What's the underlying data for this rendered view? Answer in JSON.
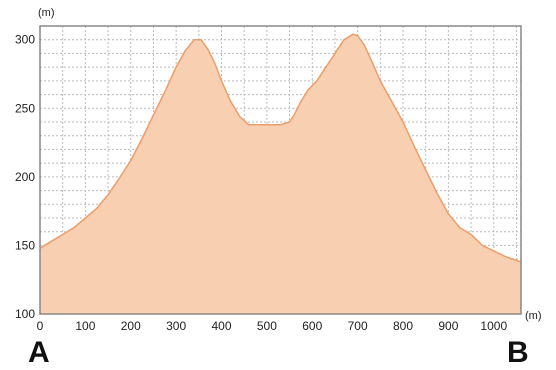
{
  "colors": {
    "fill": "#f8cfb0",
    "line": "#ec9d6c",
    "grid": "#bbbbbb",
    "frame": "#888888"
  },
  "endpoints": {
    "start": "A",
    "end": "B"
  },
  "chart_data": {
    "type": "area",
    "x_unit_label": "(m)",
    "y_unit_label": "(m)",
    "xlim": [
      0,
      1060
    ],
    "ylim": [
      100,
      310
    ],
    "x_ticks": [
      0,
      100,
      200,
      300,
      400,
      500,
      600,
      700,
      800,
      900,
      1000
    ],
    "y_ticks": [
      100,
      150,
      200,
      250,
      300
    ],
    "x_grid_step": 50,
    "y_grid_step": 10,
    "grid": true,
    "x": [
      0,
      25,
      50,
      75,
      100,
      125,
      150,
      175,
      200,
      225,
      250,
      275,
      300,
      320,
      340,
      355,
      370,
      385,
      400,
      420,
      440,
      460,
      475,
      490,
      510,
      530,
      550,
      560,
      575,
      590,
      610,
      630,
      650,
      670,
      690,
      700,
      715,
      730,
      750,
      775,
      800,
      825,
      850,
      875,
      900,
      925,
      950,
      975,
      1000,
      1025,
      1050,
      1060
    ],
    "y": [
      148,
      153,
      158,
      163,
      170,
      177,
      187,
      199,
      212,
      228,
      245,
      262,
      280,
      292,
      300,
      300,
      293,
      283,
      270,
      255,
      244,
      238,
      238,
      238,
      238,
      238,
      240,
      245,
      255,
      263,
      270,
      280,
      290,
      300,
      304,
      303,
      296,
      285,
      270,
      255,
      240,
      222,
      205,
      188,
      173,
      163,
      158,
      150,
      146,
      142,
      139,
      138
    ]
  }
}
